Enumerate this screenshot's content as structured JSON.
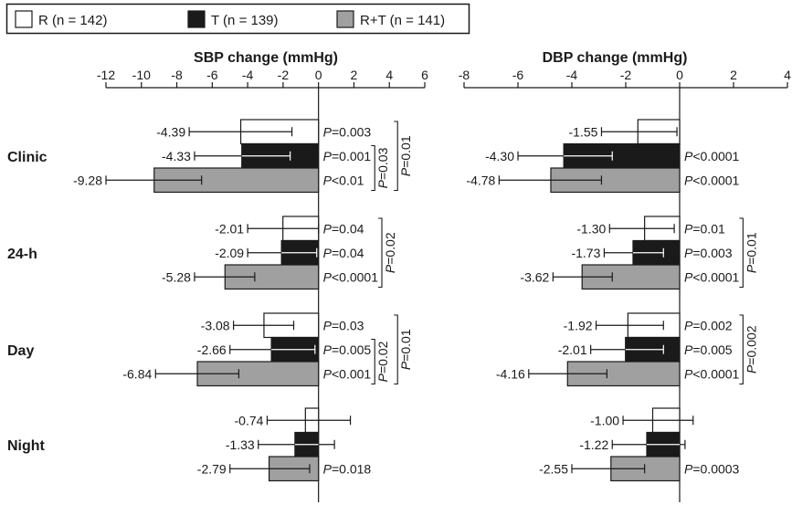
{
  "chart_data": {
    "type": "bar",
    "orientation": "horizontal",
    "legend": [
      {
        "key": "R",
        "label": "R (n = 142)",
        "color": "#ffffff"
      },
      {
        "key": "T",
        "label": "T (n = 139)",
        "color": "#1a1a1a"
      },
      {
        "key": "RT",
        "label": "R+T (n = 141)",
        "color": "#a0a0a0"
      }
    ],
    "categories": [
      "Clinic",
      "24-h",
      "Day",
      "Night"
    ],
    "panels": [
      {
        "title": "SBP change (mmHg)",
        "xlim": [
          -12,
          6
        ],
        "ticks": [
          -12,
          -10,
          -8,
          -6,
          -4,
          -2,
          0,
          2,
          4,
          6
        ],
        "groups": [
          {
            "category": "Clinic",
            "bars": [
              {
                "series": "R",
                "value": -4.39,
                "label": "-4.39",
                "ci": [
                  -7.3,
                  -1.5
                ],
                "p": "=0.003"
              },
              {
                "series": "T",
                "value": -4.33,
                "label": "-4.33",
                "ci": [
                  -7.0,
                  -1.6
                ],
                "p": "=0.001"
              },
              {
                "series": "RT",
                "value": -9.28,
                "label": "-9.28",
                "ci": [
                  -12.0,
                  -6.6
                ],
                "p": "<0.01"
              }
            ],
            "brackets": [
              {
                "p": "=0.03",
                "from": 1,
                "to": 2,
                "level": 1
              },
              {
                "p": "=0.01",
                "from": 0,
                "to": 2,
                "level": 2
              }
            ]
          },
          {
            "category": "24-h",
            "bars": [
              {
                "series": "R",
                "value": -2.01,
                "label": "-2.01",
                "ci": [
                  -4.0,
                  0.0
                ],
                "p": "=0.04"
              },
              {
                "series": "T",
                "value": -2.09,
                "label": "-2.09",
                "ci": [
                  -4.0,
                  -0.1
                ],
                "p": "=0.04"
              },
              {
                "series": "RT",
                "value": -5.28,
                "label": "-5.28",
                "ci": [
                  -7.0,
                  -3.6
                ],
                "p": "<0.0001"
              }
            ],
            "brackets": [
              {
                "p": "=0.02",
                "from": 0,
                "to": 2,
                "level": 1
              }
            ]
          },
          {
            "category": "Day",
            "bars": [
              {
                "series": "R",
                "value": -3.08,
                "label": "-3.08",
                "ci": [
                  -4.8,
                  -1.4
                ],
                "p": "=0.03"
              },
              {
                "series": "T",
                "value": -2.66,
                "label": "-2.66",
                "ci": [
                  -5.0,
                  -0.2
                ],
                "p": "=0.005"
              },
              {
                "series": "RT",
                "value": -6.84,
                "label": "-6.84",
                "ci": [
                  -9.2,
                  -4.5
                ],
                "p": "<0.001"
              }
            ],
            "brackets": [
              {
                "p": "=0.02",
                "from": 1,
                "to": 2,
                "level": 1
              },
              {
                "p": "=0.01",
                "from": 0,
                "to": 2,
                "level": 2
              }
            ]
          },
          {
            "category": "Night",
            "bars": [
              {
                "series": "R",
                "value": -0.74,
                "label": "-0.74",
                "ci": [
                  -2.9,
                  1.8
                ],
                "p": ""
              },
              {
                "series": "T",
                "value": -1.33,
                "label": "-1.33",
                "ci": [
                  -3.4,
                  0.9
                ],
                "p": ""
              },
              {
                "series": "RT",
                "value": -2.79,
                "label": "-2.79",
                "ci": [
                  -5.0,
                  -0.5
                ],
                "p": "=0.018"
              }
            ],
            "brackets": []
          }
        ]
      },
      {
        "title": "DBP change (mmHg)",
        "xlim": [
          -8,
          4
        ],
        "ticks": [
          -8,
          -6,
          -4,
          -2,
          0,
          2,
          4
        ],
        "groups": [
          {
            "category": "Clinic",
            "bars": [
              {
                "series": "R",
                "value": -1.55,
                "label": "-1.55",
                "ci": [
                  -2.9,
                  -0.1
                ],
                "p": ""
              },
              {
                "series": "T",
                "value": -4.3,
                "label": "-4.30",
                "ci": [
                  -6.0,
                  -2.5
                ],
                "p": "<0.0001"
              },
              {
                "series": "RT",
                "value": -4.78,
                "label": "-4.78",
                "ci": [
                  -6.7,
                  -2.9
                ],
                "p": "<0.0001"
              }
            ],
            "brackets": []
          },
          {
            "category": "24-h",
            "bars": [
              {
                "series": "R",
                "value": -1.3,
                "label": "-1.30",
                "ci": [
                  -2.6,
                  -0.2
                ],
                "p": "=0.01"
              },
              {
                "series": "T",
                "value": -1.73,
                "label": "-1.73",
                "ci": [
                  -2.8,
                  -0.6
                ],
                "p": "=0.003"
              },
              {
                "series": "RT",
                "value": -3.62,
                "label": "-3.62",
                "ci": [
                  -4.7,
                  -2.5
                ],
                "p": "<0.0001"
              }
            ],
            "brackets": [
              {
                "p": "=0.01",
                "from": 0,
                "to": 2,
                "level": 1
              }
            ]
          },
          {
            "category": "Day",
            "bars": [
              {
                "series": "R",
                "value": -1.92,
                "label": "-1.92",
                "ci": [
                  -3.1,
                  -0.6
                ],
                "p": "=0.002"
              },
              {
                "series": "T",
                "value": -2.01,
                "label": "-2.01",
                "ci": [
                  -3.3,
                  -0.6
                ],
                "p": "=0.005"
              },
              {
                "series": "RT",
                "value": -4.16,
                "label": "-4.16",
                "ci": [
                  -5.6,
                  -2.7
                ],
                "p": "<0.0001"
              }
            ],
            "brackets": [
              {
                "p": "=0.002",
                "from": 0,
                "to": 2,
                "level": 1
              }
            ]
          },
          {
            "category": "Night",
            "bars": [
              {
                "series": "R",
                "value": -1.0,
                "label": "-1.00",
                "ci": [
                  -2.1,
                  0.5
                ],
                "p": ""
              },
              {
                "series": "T",
                "value": -1.22,
                "label": "-1.22",
                "ci": [
                  -2.5,
                  0.2
                ],
                "p": ""
              },
              {
                "series": "RT",
                "value": -2.55,
                "label": "-2.55",
                "ci": [
                  -4.0,
                  -1.3
                ],
                "p": "=0.0003"
              }
            ],
            "brackets": []
          }
        ]
      }
    ]
  },
  "p_prefix": "P"
}
